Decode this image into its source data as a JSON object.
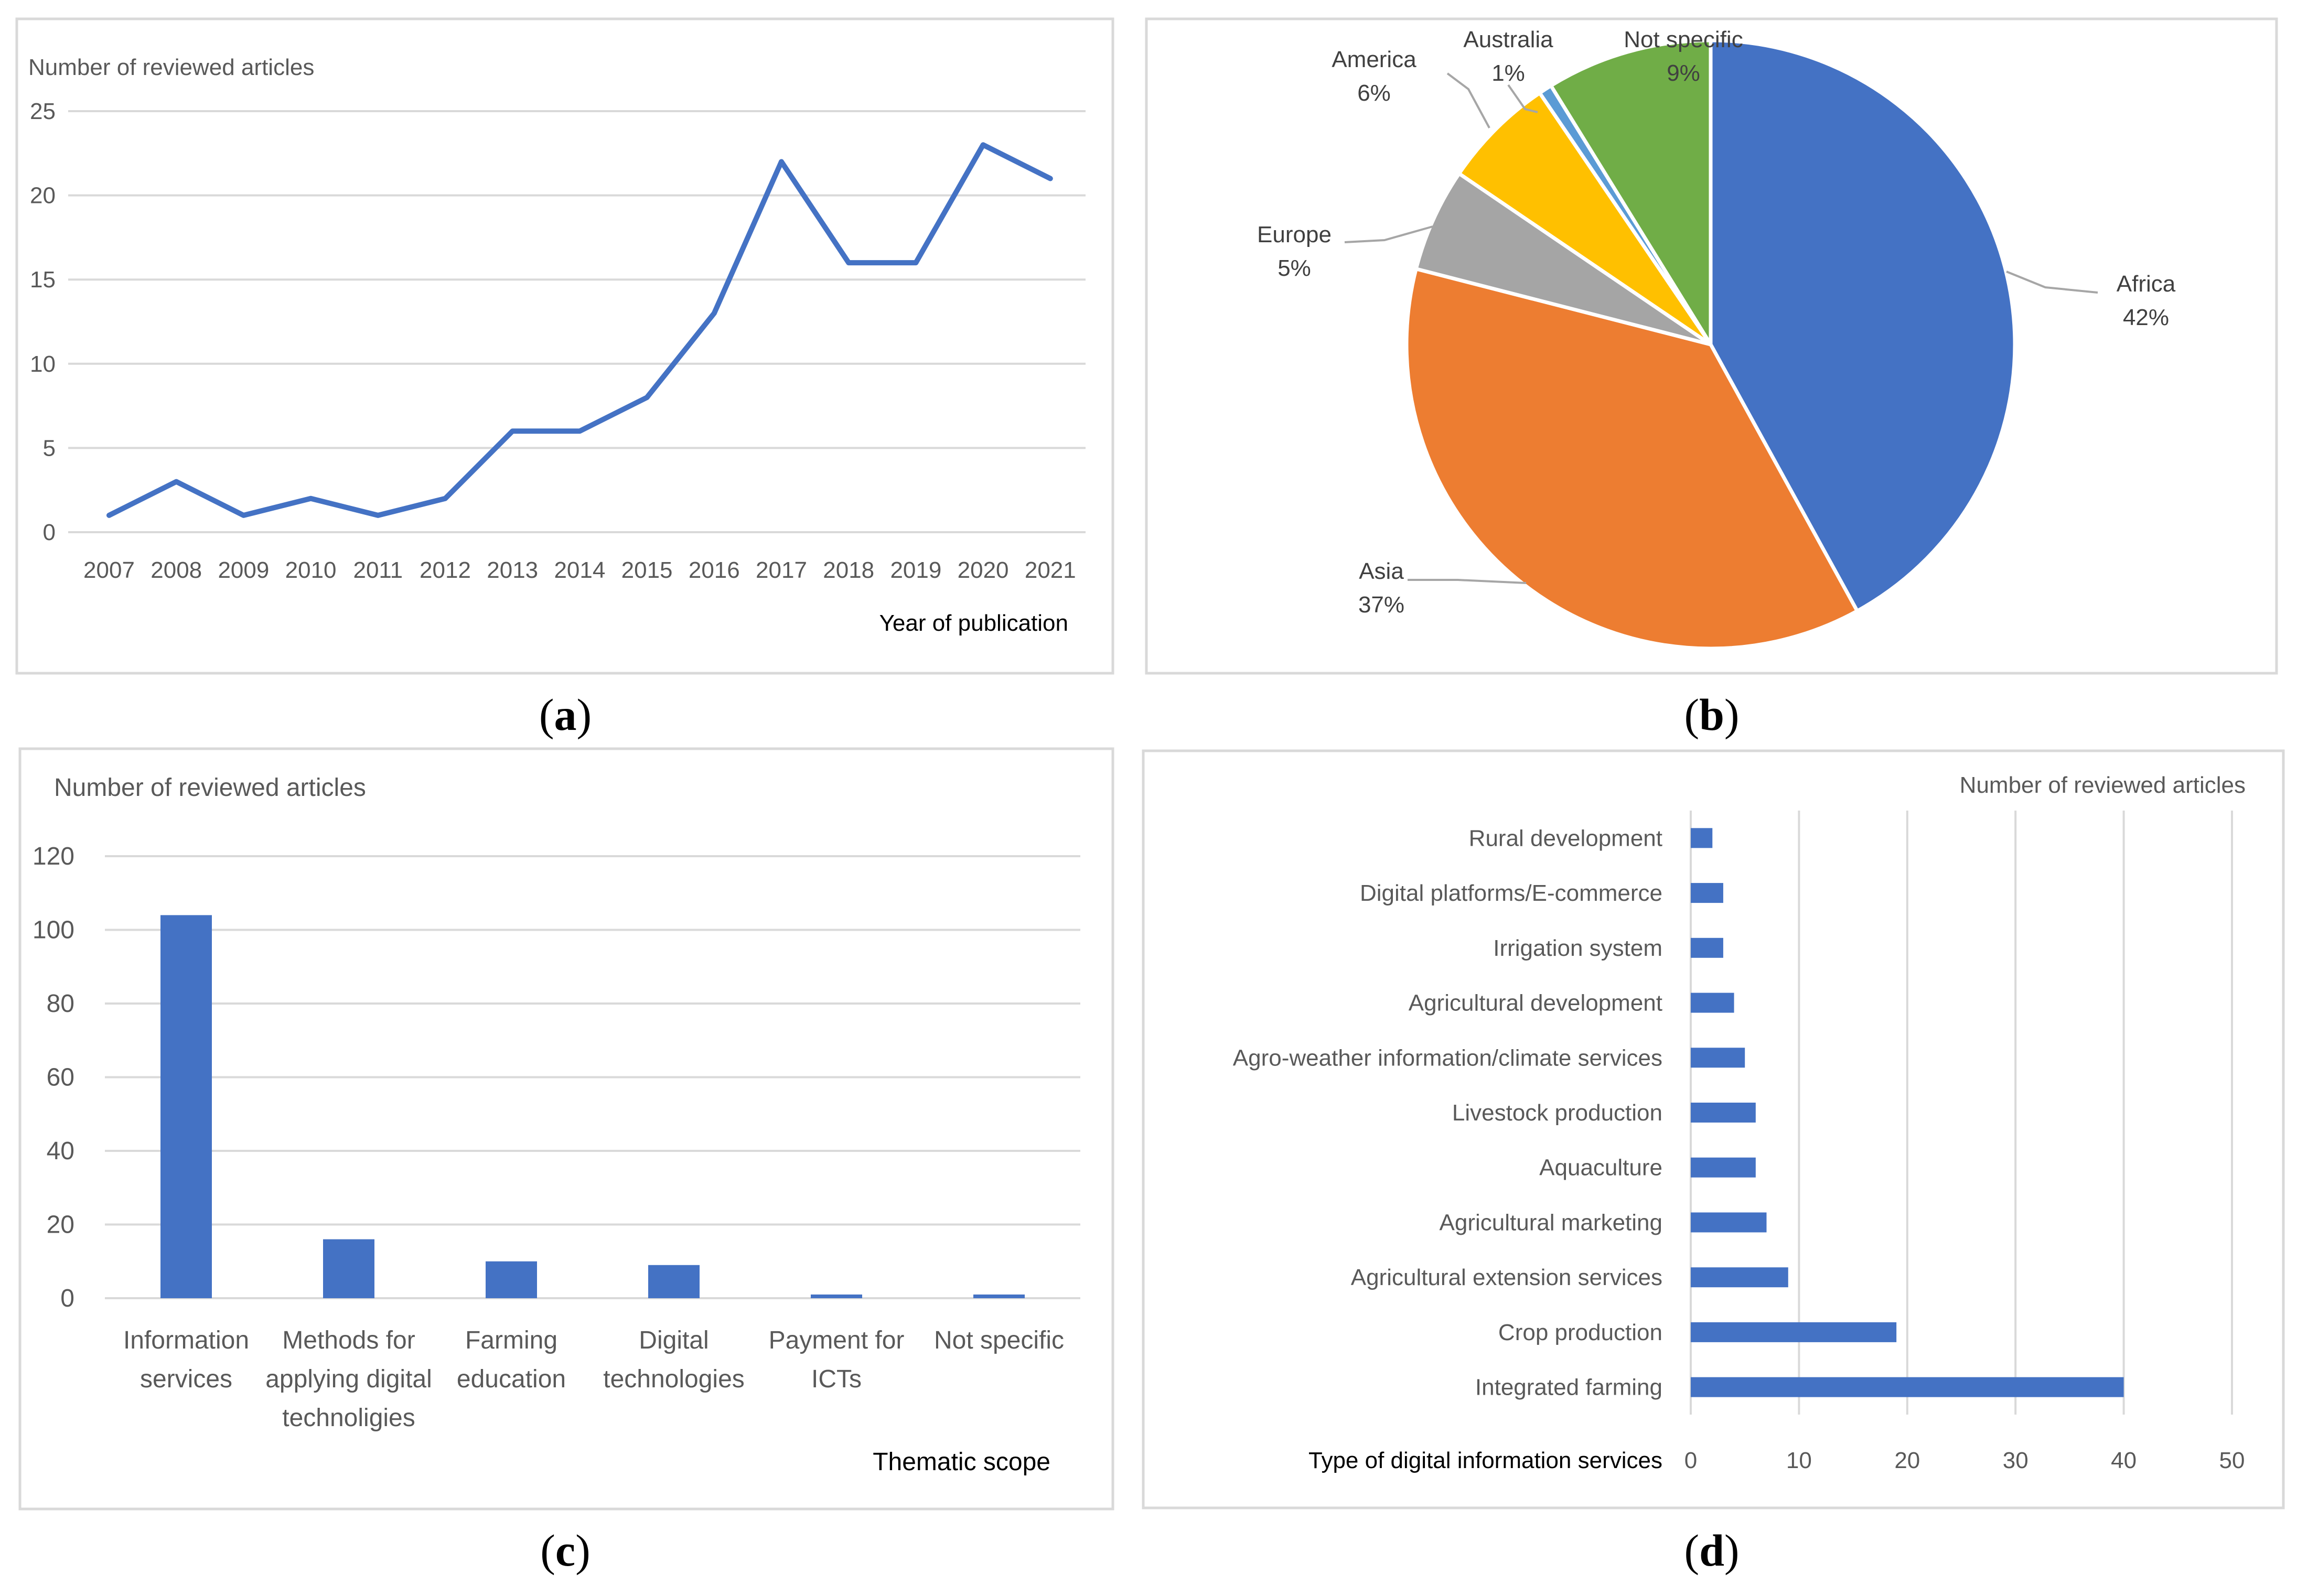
{
  "panels": {
    "a": {
      "caption_letter": "a",
      "chart_data": {
        "type": "line",
        "title": "",
        "ylabel": "Number of reviewed articles",
        "xlabel": "Year of publication",
        "x": [
          "2007",
          "2008",
          "2009",
          "2010",
          "2011",
          "2012",
          "2013",
          "2014",
          "2015",
          "2016",
          "2017",
          "2018",
          "2019",
          "2020",
          "2021"
        ],
        "y": [
          1,
          3,
          1,
          2,
          1,
          2,
          6,
          6,
          8,
          13,
          22,
          16,
          16,
          23,
          21
        ],
        "ylim": [
          0,
          25
        ],
        "yticks": [
          "0",
          "5",
          "10",
          "15",
          "20",
          "25"
        ],
        "grid": true,
        "color": "#4472C4"
      }
    },
    "b": {
      "caption_letter": "b",
      "chart_data": {
        "type": "pie",
        "slices": [
          {
            "name": "Africa",
            "pct_label": "42%",
            "value": 42,
            "color": "#4472C4"
          },
          {
            "name": "Asia",
            "pct_label": "37%",
            "value": 37,
            "color": "#ED7D31"
          },
          {
            "name": "Europe",
            "pct_label": "5%",
            "value": 5.5,
            "color": "#A5A5A5"
          },
          {
            "name": "America",
            "pct_label": "6%",
            "value": 6,
            "color": "#FFC000"
          },
          {
            "name": "Australia",
            "pct_label": "1%",
            "value": 0.7,
            "color": "#5B9BD5"
          },
          {
            "name": "Not specific",
            "pct_label": "9%",
            "value": 8.8,
            "color": "#70AD47"
          }
        ]
      }
    },
    "c": {
      "caption_letter": "c",
      "chart_data": {
        "type": "bar",
        "ylabel": "Number of reviewed articles",
        "xlabel": "Thematic scope",
        "categories": [
          [
            "Information",
            "services"
          ],
          [
            "Methods for",
            "applying digital",
            "technoligies"
          ],
          [
            "Farming",
            "education"
          ],
          [
            "Digital",
            "technologies"
          ],
          [
            "Payment for",
            "ICTs"
          ],
          [
            "Not specific"
          ]
        ],
        "values": [
          104,
          16,
          10,
          9,
          1,
          1
        ],
        "ylim": [
          0,
          120
        ],
        "yticks": [
          "0",
          "20",
          "40",
          "60",
          "80",
          "100",
          "120"
        ],
        "grid": true,
        "color": "#4472C4"
      }
    },
    "d": {
      "caption_letter": "d",
      "chart_data": {
        "type": "bar",
        "orientation": "horizontal",
        "xlabel_top": "Number of reviewed articles",
        "ylabel": "Type of digital  information services",
        "categories": [
          "Rural development",
          "Digital platforms/E-commerce",
          "Irrigation system",
          "Agricultural development",
          "Agro-weather information/climate services",
          "Livestock production",
          "Aquaculture",
          "Agricultural marketing",
          "Agricultural extension services",
          "Crop production",
          "Integrated farming"
        ],
        "values": [
          2,
          3,
          3,
          4,
          5,
          6,
          6,
          7,
          9,
          19,
          40
        ],
        "xlim": [
          0,
          50
        ],
        "xticks": [
          "0",
          "10",
          "20",
          "30",
          "40",
          "50"
        ],
        "grid": true,
        "color": "#4472C4"
      }
    }
  }
}
